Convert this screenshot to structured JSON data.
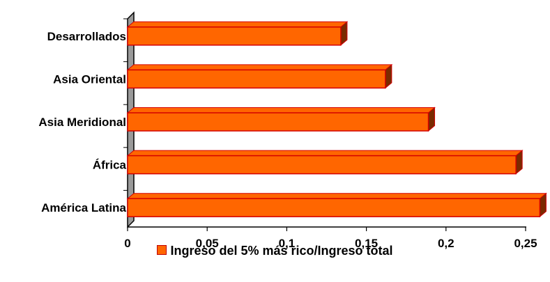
{
  "chart_data": {
    "type": "bar",
    "orientation": "horizontal",
    "categories": [
      "Desarrollados",
      "Asia Oriental",
      "Asia Meridional",
      "África",
      "América Latina"
    ],
    "series": [
      {
        "name": "Ingreso del 5% más rico/Ingreso total",
        "values": [
          0.13,
          0.158,
          0.185,
          0.24,
          0.255
        ]
      }
    ],
    "x_tick_labels": [
      "0",
      "0,05",
      "0,1",
      "0,15",
      "0,2",
      "0,25"
    ],
    "xlim": [
      0,
      0.25
    ],
    "grid": false,
    "legend_position": "bottom",
    "colors": {
      "bar_fill": "#ff6600",
      "bar_edge": "#d40000",
      "bar_side": "#7a2a00",
      "wall": "#9a9a9a"
    }
  }
}
